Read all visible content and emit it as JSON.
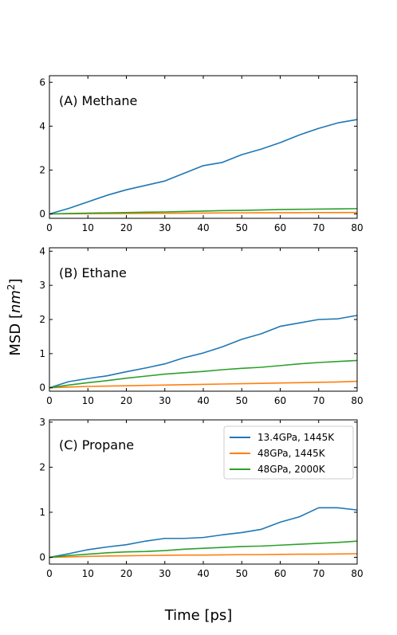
{
  "figure": {
    "xlabel": "Time [ps]",
    "ylabel": "MSD [nm²]",
    "ylabel_prefix": "MSD [",
    "ylabel_var": "nm",
    "ylabel_sup": "2",
    "ylabel_suffix": "]"
  },
  "legend": {
    "placement": "top-right of panel C",
    "entries": [
      {
        "label": "13.4GPa, 1445K",
        "color": "#1f77b4"
      },
      {
        "label": "48GPa, 1445K",
        "color": "#ff7f0e"
      },
      {
        "label": "48GPa, 2000K",
        "color": "#2ca02c"
      }
    ]
  },
  "chart_data": [
    {
      "type": "line",
      "title": "(A) Methane",
      "xlim": [
        0,
        80
      ],
      "ylim": [
        -0.2,
        6.3
      ],
      "xticks": [
        0,
        10,
        20,
        30,
        40,
        50,
        60,
        70,
        80
      ],
      "yticks": [
        0,
        2,
        4,
        6
      ],
      "grid": false,
      "x": [
        0,
        5,
        10,
        15,
        20,
        25,
        30,
        35,
        40,
        45,
        50,
        55,
        60,
        65,
        70,
        75,
        80
      ],
      "series": [
        {
          "name": "13.4GPa, 1445K",
          "color": "#1f77b4",
          "values": [
            0,
            0.25,
            0.55,
            0.85,
            1.1,
            1.3,
            1.5,
            1.85,
            2.2,
            2.35,
            2.7,
            2.95,
            3.25,
            3.6,
            3.9,
            4.15,
            4.3
          ]
        },
        {
          "name": "48GPa, 1445K",
          "color": "#ff7f0e",
          "values": [
            0,
            0.005,
            0.01,
            0.015,
            0.02,
            0.025,
            0.03,
            0.035,
            0.04,
            0.045,
            0.05,
            0.052,
            0.055,
            0.058,
            0.06,
            0.062,
            0.065
          ]
        },
        {
          "name": "48GPa, 2000K",
          "color": "#2ca02c",
          "values": [
            0,
            0.02,
            0.035,
            0.05,
            0.06,
            0.08,
            0.09,
            0.11,
            0.13,
            0.15,
            0.16,
            0.18,
            0.2,
            0.21,
            0.22,
            0.23,
            0.24
          ]
        }
      ]
    },
    {
      "type": "line",
      "title": "(B) Ethane",
      "xlim": [
        0,
        80
      ],
      "ylim": [
        -0.1,
        4.1
      ],
      "xticks": [
        0,
        10,
        20,
        30,
        40,
        50,
        60,
        70,
        80
      ],
      "yticks": [
        0,
        1,
        2,
        3,
        4
      ],
      "grid": false,
      "x": [
        0,
        5,
        10,
        15,
        20,
        25,
        30,
        35,
        40,
        45,
        50,
        55,
        60,
        65,
        70,
        75,
        80
      ],
      "series": [
        {
          "name": "13.4GPa, 1445K",
          "color": "#1f77b4",
          "values": [
            0,
            0.18,
            0.27,
            0.35,
            0.47,
            0.58,
            0.7,
            0.88,
            1.02,
            1.2,
            1.42,
            1.58,
            1.8,
            1.9,
            2.0,
            2.02,
            2.12
          ]
        },
        {
          "name": "48GPa, 1445K",
          "color": "#ff7f0e",
          "values": [
            0,
            0.02,
            0.04,
            0.05,
            0.06,
            0.07,
            0.08,
            0.09,
            0.1,
            0.11,
            0.12,
            0.13,
            0.14,
            0.15,
            0.16,
            0.17,
            0.19
          ]
        },
        {
          "name": "48GPa, 2000K",
          "color": "#2ca02c",
          "values": [
            0,
            0.08,
            0.15,
            0.21,
            0.28,
            0.34,
            0.4,
            0.44,
            0.48,
            0.53,
            0.57,
            0.6,
            0.65,
            0.7,
            0.74,
            0.77,
            0.8
          ]
        }
      ]
    },
    {
      "type": "line",
      "title": "(C) Propane",
      "xlim": [
        0,
        80
      ],
      "ylim": [
        -0.15,
        3.05
      ],
      "xticks": [
        0,
        10,
        20,
        30,
        40,
        50,
        60,
        70,
        80
      ],
      "yticks": [
        0,
        1,
        2,
        3
      ],
      "grid": false,
      "x": [
        0,
        5,
        10,
        15,
        20,
        25,
        30,
        35,
        40,
        45,
        50,
        55,
        60,
        65,
        70,
        75,
        80
      ],
      "series": [
        {
          "name": "13.4GPa, 1445K",
          "color": "#1f77b4",
          "values": [
            0,
            0.08,
            0.17,
            0.23,
            0.28,
            0.36,
            0.42,
            0.42,
            0.44,
            0.5,
            0.55,
            0.62,
            0.78,
            0.9,
            1.1,
            1.1,
            1.05
          ]
        },
        {
          "name": "48GPa, 1445K",
          "color": "#ff7f0e",
          "values": [
            0,
            0.01,
            0.02,
            0.03,
            0.035,
            0.04,
            0.045,
            0.05,
            0.05,
            0.055,
            0.06,
            0.06,
            0.065,
            0.07,
            0.07,
            0.075,
            0.08
          ]
        },
        {
          "name": "48GPa, 2000K",
          "color": "#2ca02c",
          "values": [
            0,
            0.04,
            0.07,
            0.1,
            0.12,
            0.13,
            0.15,
            0.18,
            0.2,
            0.22,
            0.24,
            0.25,
            0.27,
            0.29,
            0.31,
            0.33,
            0.36
          ]
        }
      ]
    }
  ]
}
